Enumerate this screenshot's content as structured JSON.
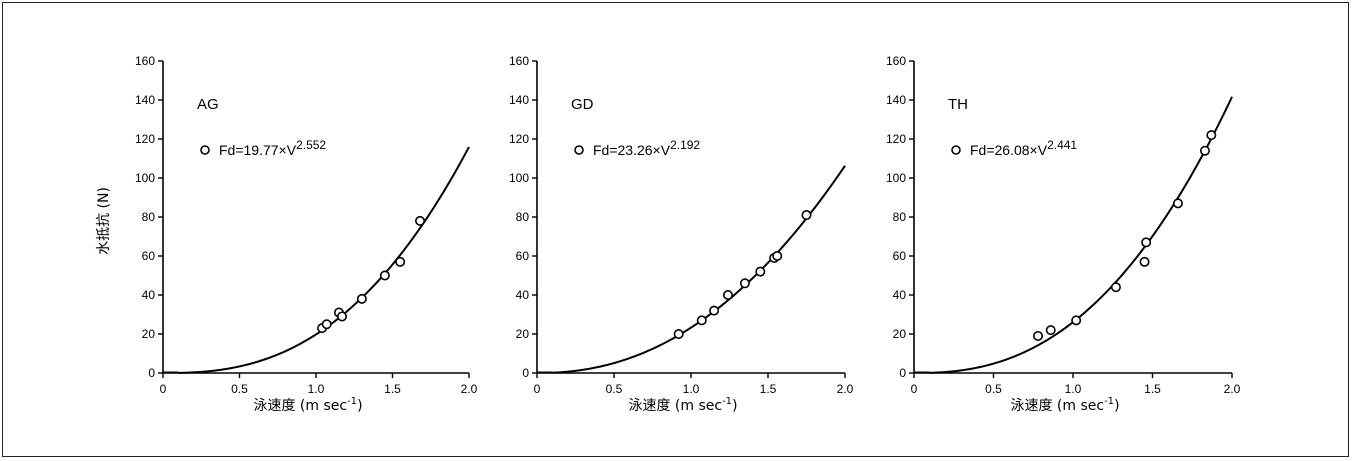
{
  "chart_data": [
    {
      "type": "scatter",
      "panel_label": "AG",
      "equation": {
        "prefix": "Fd=19.77×V",
        "exponent": "2.552",
        "coef": 19.77,
        "exp": 2.552
      },
      "ylabel": "水抵抗 (N)",
      "xlabel": {
        "base": "泳速度 (m sec",
        "sup": "-1",
        "close": ")"
      },
      "xlim": [
        0,
        2.0
      ],
      "ylim": [
        0,
        160
      ],
      "xticks": [
        "0",
        "0.5",
        "1.0",
        "1.5",
        "2.0"
      ],
      "yticks": [
        "0",
        "20",
        "40",
        "60",
        "80",
        "100",
        "120",
        "140",
        "160"
      ],
      "points": [
        [
          1.04,
          23
        ],
        [
          1.07,
          25
        ],
        [
          1.15,
          31
        ],
        [
          1.17,
          29
        ],
        [
          1.3,
          38
        ],
        [
          1.45,
          50
        ],
        [
          1.55,
          57
        ],
        [
          1.68,
          78
        ]
      ]
    },
    {
      "type": "scatter",
      "panel_label": "GD",
      "equation": {
        "prefix": "Fd=23.26×V",
        "exponent": "2.192",
        "coef": 23.26,
        "exp": 2.192
      },
      "ylabel": "",
      "xlabel": {
        "base": "泳速度 (m sec",
        "sup": "-1",
        "close": ")"
      },
      "xlim": [
        0,
        2.0
      ],
      "ylim": [
        0,
        160
      ],
      "xticks": [
        "0",
        "0.5",
        "1.0",
        "1.5",
        "2.0"
      ],
      "yticks": [
        "0",
        "20",
        "40",
        "60",
        "80",
        "100",
        "120",
        "140",
        "160"
      ],
      "points": [
        [
          0.92,
          20
        ],
        [
          1.07,
          27
        ],
        [
          1.15,
          32
        ],
        [
          1.24,
          40
        ],
        [
          1.35,
          46
        ],
        [
          1.45,
          52
        ],
        [
          1.54,
          59
        ],
        [
          1.56,
          60
        ],
        [
          1.75,
          81
        ]
      ]
    },
    {
      "type": "scatter",
      "panel_label": "TH",
      "equation": {
        "prefix": "Fd=26.08×V",
        "exponent": "2.441",
        "coef": 26.08,
        "exp": 2.441
      },
      "ylabel": "",
      "xlabel": {
        "base": "泳速度 (m sec",
        "sup": "-1",
        "close": ")"
      },
      "xlim": [
        0,
        2.0
      ],
      "ylim": [
        0,
        160
      ],
      "xticks": [
        "0",
        "0.5",
        "1.0",
        "1.5",
        "2.0"
      ],
      "yticks": [
        "0",
        "20",
        "40",
        "60",
        "80",
        "100",
        "120",
        "140",
        "160"
      ],
      "points": [
        [
          0.78,
          19
        ],
        [
          0.86,
          22
        ],
        [
          1.02,
          27
        ],
        [
          1.27,
          44
        ],
        [
          1.45,
          57
        ],
        [
          1.46,
          67
        ],
        [
          1.66,
          87
        ],
        [
          1.83,
          114
        ],
        [
          1.87,
          122
        ]
      ]
    }
  ]
}
